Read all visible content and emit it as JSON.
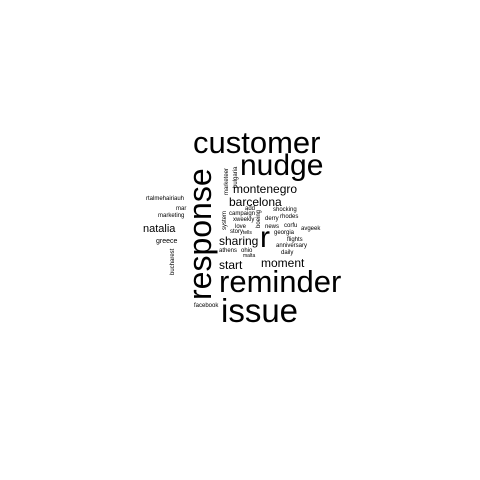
{
  "wordcloud": {
    "text_color": "#000000",
    "background": "#ffffff",
    "words": [
      {
        "text": "customer",
        "weight": 10
      },
      {
        "text": "nudge",
        "weight": 10
      },
      {
        "text": "response",
        "weight": 10
      },
      {
        "text": "reminder",
        "weight": 10
      },
      {
        "text": "issue",
        "weight": 10
      },
      {
        "text": "r",
        "weight": 8
      },
      {
        "text": "montenegro",
        "weight": 4
      },
      {
        "text": "barcelona",
        "weight": 4
      },
      {
        "text": "natalia",
        "weight": 4
      },
      {
        "text": "sharing",
        "weight": 4
      },
      {
        "text": "start",
        "weight": 4
      },
      {
        "text": "moment",
        "weight": 4
      },
      {
        "text": "marketeer",
        "weight": 1
      },
      {
        "text": "bulgaria",
        "weight": 1
      },
      {
        "text": "rtalmehairiauh",
        "weight": 1
      },
      {
        "text": "mar",
        "weight": 1
      },
      {
        "text": "marketing",
        "weight": 1
      },
      {
        "text": "greece",
        "weight": 1
      },
      {
        "text": "bucharest",
        "weight": 1
      },
      {
        "text": "system",
        "weight": 1
      },
      {
        "text": "add",
        "weight": 1
      },
      {
        "text": "campaign",
        "weight": 1
      },
      {
        "text": "xweekly",
        "weight": 1
      },
      {
        "text": "love",
        "weight": 1
      },
      {
        "text": "story",
        "weight": 1
      },
      {
        "text": "tells",
        "weight": 1
      },
      {
        "text": "boeing",
        "weight": 1
      },
      {
        "text": "shocking",
        "weight": 1
      },
      {
        "text": "rhodes",
        "weight": 1
      },
      {
        "text": "derry",
        "weight": 1
      },
      {
        "text": "news",
        "weight": 1
      },
      {
        "text": "corfu",
        "weight": 1
      },
      {
        "text": "avgeek",
        "weight": 1
      },
      {
        "text": "georgia",
        "weight": 1
      },
      {
        "text": "flights",
        "weight": 1
      },
      {
        "text": "anniversary",
        "weight": 1
      },
      {
        "text": "athens",
        "weight": 1
      },
      {
        "text": "ohio",
        "weight": 1
      },
      {
        "text": "malta",
        "weight": 1
      },
      {
        "text": "daily",
        "weight": 1
      },
      {
        "text": "facebook",
        "weight": 1
      }
    ]
  }
}
